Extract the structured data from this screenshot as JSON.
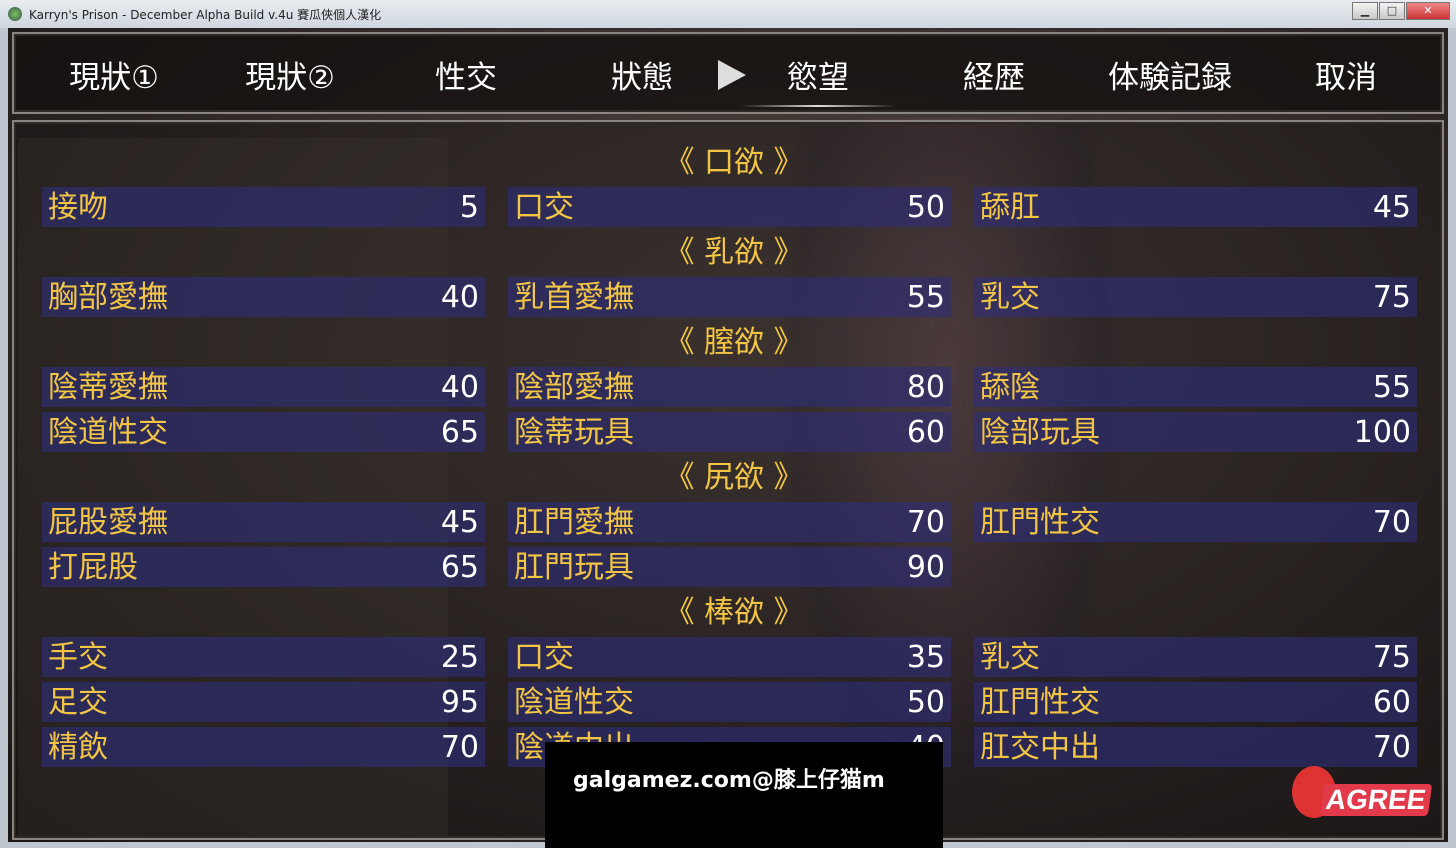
{
  "window": {
    "title": "Karryn's Prison - December Alpha Build v.4u 賽瓜俠個人漢化",
    "min": "▁",
    "max": "□",
    "close": "✕"
  },
  "menu": {
    "tabs": [
      "現狀①",
      "現狀②",
      "性交",
      "狀態",
      "慾望",
      "経歴",
      "体験記録",
      "取消"
    ],
    "selected": 4
  },
  "sections": [
    {
      "title": "《 口欲 》",
      "rows": [
        [
          [
            "接吻",
            "5"
          ],
          [
            "口交",
            "50"
          ],
          [
            "舔肛",
            "45"
          ]
        ]
      ]
    },
    {
      "title": "《 乳欲 》",
      "rows": [
        [
          [
            "胸部愛撫",
            "40"
          ],
          [
            "乳首愛撫",
            "55"
          ],
          [
            "乳交",
            "75"
          ]
        ]
      ]
    },
    {
      "title": "《 膣欲 》",
      "rows": [
        [
          [
            "陰蒂愛撫",
            "40"
          ],
          [
            "陰部愛撫",
            "80"
          ],
          [
            "舔陰",
            "55"
          ]
        ],
        [
          [
            "陰道性交",
            "65"
          ],
          [
            "陰蒂玩具",
            "60"
          ],
          [
            "陰部玩具",
            "100"
          ]
        ]
      ]
    },
    {
      "title": "《 尻欲 》",
      "rows": [
        [
          [
            "屁股愛撫",
            "45"
          ],
          [
            "肛門愛撫",
            "70"
          ],
          [
            "肛門性交",
            "70"
          ]
        ],
        [
          [
            "打屁股",
            "65"
          ],
          [
            "肛門玩具",
            "90"
          ],
          null
        ]
      ]
    },
    {
      "title": "《 棒欲 》",
      "rows": [
        [
          [
            "手交",
            "25"
          ],
          [
            "口交",
            "35"
          ],
          [
            "乳交",
            "75"
          ]
        ],
        [
          [
            "足交",
            "95"
          ],
          [
            "陰道性交",
            "50"
          ],
          [
            "肛門性交",
            "60"
          ]
        ],
        [
          [
            "精飲",
            "70"
          ],
          [
            "陰道中出",
            "40"
          ],
          [
            "肛交中出",
            "70"
          ]
        ]
      ]
    }
  ],
  "watermark": "galgamez.com@膝上仔猫m",
  "logo": "AGREE"
}
